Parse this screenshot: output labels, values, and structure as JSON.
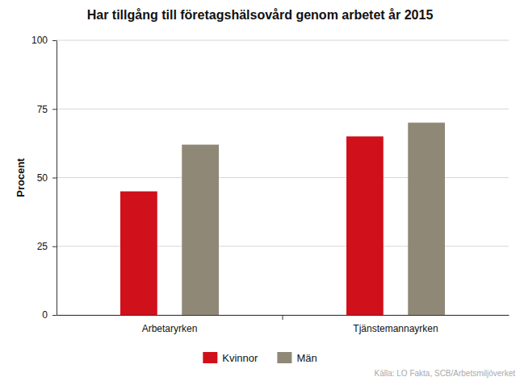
{
  "chart_data": {
    "type": "bar",
    "title": "Har tillgång till företagshälsovård genom arbetet år 2015",
    "y_label": "Procent",
    "source": "Källa: LO Fakta, SCB/Arbetsmiljöverket",
    "categories": [
      "Arbetaryrken",
      "Tjänstemannayrken"
    ],
    "series": [
      {
        "name": "Kvinnor",
        "color": "#d0101a",
        "values": [
          45,
          65
        ]
      },
      {
        "name": "Män",
        "color": "#8f8877",
        "values": [
          62,
          70
        ]
      }
    ],
    "ylim": [
      0,
      100
    ],
    "yticks": [
      0,
      25,
      50,
      75,
      100
    ],
    "grid": true,
    "legend": "bottom"
  }
}
